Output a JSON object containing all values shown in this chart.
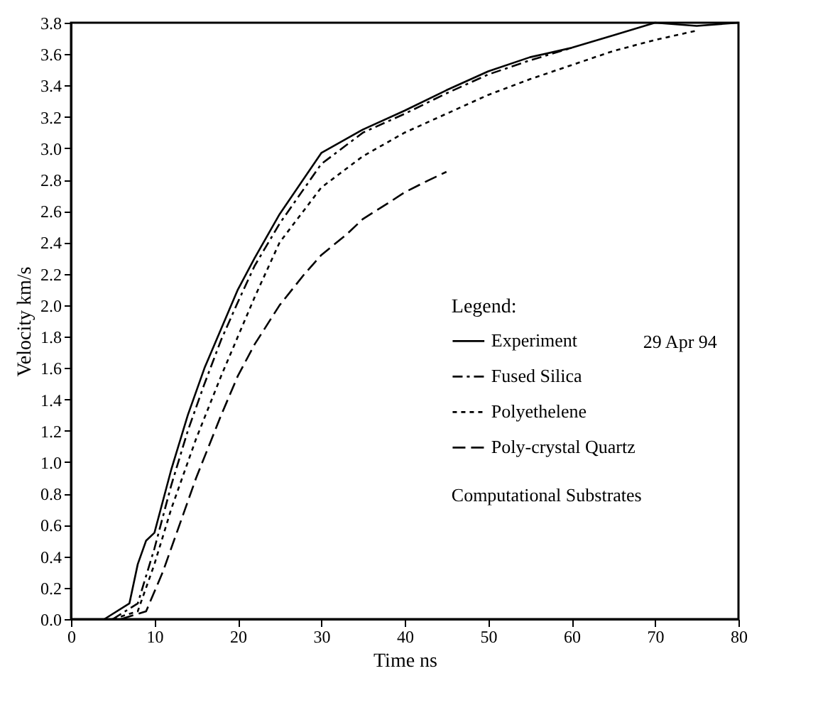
{
  "chart_data": {
    "type": "line",
    "xlabel": "Time    ns",
    "ylabel": "Velocity    km/s",
    "legend_title": "Legend:",
    "legend": "bottom right",
    "grid": false,
    "xlim": [
      0,
      80
    ],
    "xticks": [
      0,
      10,
      20,
      30,
      40,
      50,
      60,
      70,
      80
    ],
    "ylim": [
      0,
      3.8
    ],
    "yticks": [
      {
        "value": 0,
        "label": "0.0"
      },
      0.2,
      0.4,
      0.6,
      0.8,
      {
        "value": 1,
        "label": "1.0"
      },
      1.2,
      1.4,
      1.6,
      1.8,
      {
        "value": 2,
        "label": "2.0"
      },
      2.2,
      2.4,
      2.6,
      2.8,
      {
        "value": 3,
        "label": "3.0"
      },
      3.2,
      3.4,
      3.6,
      3.8
    ],
    "annotations": [
      "29 Apr 94",
      "Computational Substrates"
    ],
    "series": [
      {
        "name": "Experiment",
        "color": "#000000",
        "line_style": "solid",
        "x": [
          4,
          7,
          8,
          9,
          10,
          12,
          14,
          16,
          18,
          20,
          22,
          25,
          30,
          35,
          40,
          45,
          50,
          55,
          60,
          65,
          70,
          75,
          80
        ],
        "values": [
          0,
          0.1,
          0.35,
          0.5,
          0.55,
          0.95,
          1.3,
          1.6,
          1.85,
          2.1,
          2.3,
          2.58,
          2.97,
          3.12,
          3.24,
          3.37,
          3.49,
          3.58,
          3.64,
          3.72,
          3.8,
          3.78,
          3.8
        ]
      },
      {
        "name": "Fused Silica",
        "color": "#000000",
        "line_style": "dashdot",
        "x": [
          5,
          8,
          10,
          12,
          14,
          16,
          18,
          20,
          22,
          25,
          30,
          35,
          40,
          45,
          50,
          55,
          60
        ],
        "values": [
          0,
          0.1,
          0.45,
          0.85,
          1.2,
          1.5,
          1.78,
          2.02,
          2.25,
          2.52,
          2.9,
          3.1,
          3.22,
          3.35,
          3.47,
          3.56,
          3.64
        ]
      },
      {
        "name": "Polyethelene",
        "color": "#000000",
        "line_style": "dotted",
        "x": [
          5,
          8,
          10,
          12,
          15,
          18,
          20,
          22,
          25,
          30,
          35,
          40,
          45,
          50,
          55,
          60,
          65,
          70,
          75
        ],
        "values": [
          0,
          0.05,
          0.35,
          0.7,
          1.15,
          1.55,
          1.8,
          2.05,
          2.4,
          2.75,
          2.95,
          3.1,
          3.22,
          3.34,
          3.44,
          3.53,
          3.62,
          3.69,
          3.75
        ]
      },
      {
        "name": "Poly-crystal Quartz",
        "color": "#000000",
        "line_style": "dashed",
        "x": [
          6,
          9,
          11,
          13,
          15,
          18,
          20,
          22,
          25,
          28,
          30,
          33,
          35,
          38,
          40,
          43,
          45
        ],
        "values": [
          0,
          0.05,
          0.3,
          0.6,
          0.9,
          1.3,
          1.55,
          1.75,
          2.0,
          2.2,
          2.32,
          2.45,
          2.55,
          2.65,
          2.72,
          2.8,
          2.85
        ]
      }
    ]
  }
}
